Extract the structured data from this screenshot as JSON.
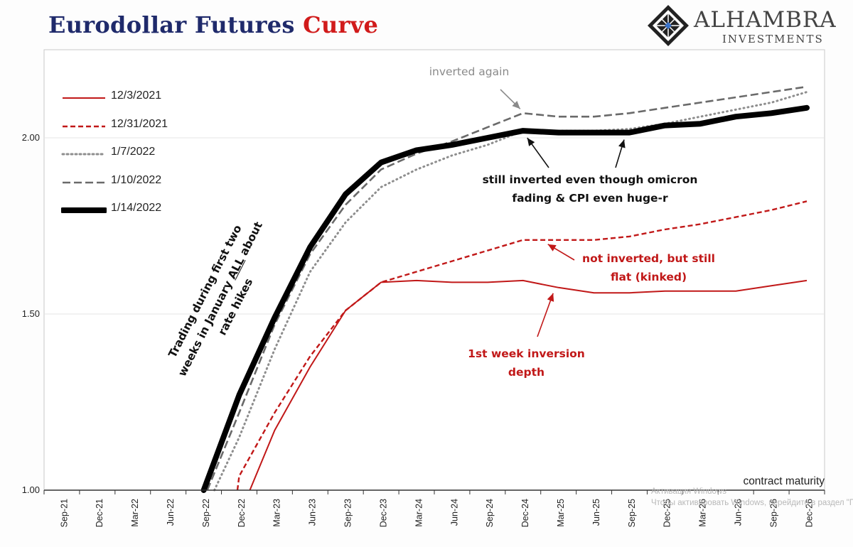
{
  "title": {
    "part1": "Eurodollar Futures ",
    "part2": "Curve"
  },
  "logo": {
    "brand": "ALHAMBRA",
    "sub": "INVESTMENTS"
  },
  "colors": {
    "red": "#c11818",
    "black": "#000000",
    "gray_dash": "#6a6a6a",
    "gray_dot": "#8e8e8e",
    "title_blue": "#1f2a6b",
    "title_red": "#d11b1b"
  },
  "chart_data": {
    "type": "line",
    "xlabel": "contract maturity",
    "ylabel": "",
    "categories": [
      "Sep-21",
      "Dec-21",
      "Mar-22",
      "Jun-22",
      "Sep-22",
      "Dec-22",
      "Mar-23",
      "Jun-23",
      "Sep-23",
      "Dec-23",
      "Mar-24",
      "Jun-24",
      "Sep-24",
      "Dec-24",
      "Mar-25",
      "Jun-25",
      "Sep-25",
      "Dec-25",
      "Mar-26",
      "Jun-26",
      "Sep-26",
      "Dec-26"
    ],
    "ylim": [
      1.0,
      2.25
    ],
    "yticks": [
      1.0,
      1.5,
      2.0
    ],
    "ytick_labels": [
      "1.00",
      "1.50",
      "2.00"
    ],
    "grid": true,
    "legend_position": "top-left",
    "series": [
      {
        "name": "12/3/2021",
        "style": "solid-red",
        "x": [
          5.3,
          6,
          7,
          8,
          9,
          10,
          11,
          12,
          13,
          14,
          15,
          16,
          17,
          18,
          19,
          20,
          21
        ],
        "values": [
          1.0,
          1.17,
          1.35,
          1.51,
          1.59,
          1.595,
          1.59,
          1.59,
          1.595,
          1.575,
          1.56,
          1.56,
          1.565,
          1.565,
          1.565,
          1.58,
          1.595
        ]
      },
      {
        "name": "12/31/2021",
        "style": "dashed-red",
        "x": [
          4.95,
          5,
          6,
          7,
          8,
          9,
          10,
          11,
          12,
          13,
          14,
          15,
          16,
          17,
          18,
          19,
          20,
          21
        ],
        "values": [
          1.0,
          1.04,
          1.22,
          1.38,
          1.51,
          1.59,
          1.62,
          1.65,
          1.68,
          1.71,
          1.71,
          1.71,
          1.72,
          1.74,
          1.755,
          1.775,
          1.795,
          1.82
        ]
      },
      {
        "name": "1/7/2022",
        "style": "dotted-gray",
        "x": [
          4.3,
          5,
          6,
          7,
          8,
          9,
          10,
          11,
          12,
          13,
          14,
          15,
          16,
          17,
          18,
          19,
          20,
          21
        ],
        "values": [
          1.0,
          1.15,
          1.4,
          1.62,
          1.76,
          1.86,
          1.91,
          1.95,
          1.98,
          2.02,
          2.02,
          2.02,
          2.025,
          2.04,
          2.06,
          2.08,
          2.1,
          2.13
        ]
      },
      {
        "name": "1/10/2022",
        "style": "dashed-gray",
        "x": [
          4.1,
          5,
          6,
          7,
          8,
          9,
          10,
          11,
          12,
          13,
          14,
          15,
          16,
          17,
          18,
          19,
          20,
          21
        ],
        "values": [
          1.0,
          1.22,
          1.47,
          1.67,
          1.81,
          1.91,
          1.955,
          1.99,
          2.03,
          2.07,
          2.06,
          2.06,
          2.07,
          2.085,
          2.1,
          2.115,
          2.13,
          2.145
        ]
      },
      {
        "name": "1/14/2022",
        "style": "thick-black",
        "x": [
          4.0,
          5,
          6,
          7,
          8,
          9,
          10,
          11,
          12,
          13,
          14,
          15,
          16,
          17,
          18,
          19,
          20,
          21
        ],
        "values": [
          1.0,
          1.27,
          1.49,
          1.69,
          1.84,
          1.93,
          1.965,
          1.98,
          2.0,
          2.02,
          2.015,
          2.015,
          2.015,
          2.035,
          2.04,
          2.06,
          2.07,
          2.085
        ]
      }
    ]
  },
  "annotations": {
    "inverted_again": "inverted again",
    "still_inverted_line1": "still inverted even though omicron",
    "still_inverted_line2": "fading & CPI even huge-r",
    "not_inverted_line1": "not inverted, but still",
    "not_inverted_line2": "flat (kinked)",
    "first_week_line1": "1st week inversion",
    "first_week_line2": "depth",
    "trading_line1": "Trading during first two",
    "trading_line2_pre": "weeks in January ",
    "trading_line2_em": "ALL",
    "trading_line2_post": " about",
    "trading_line3": "rate hikes"
  },
  "watermark": {
    "line1": "Активация Windows",
    "line2": "Чтобы активировать Windows, перейдите в раздел \"Пар"
  }
}
